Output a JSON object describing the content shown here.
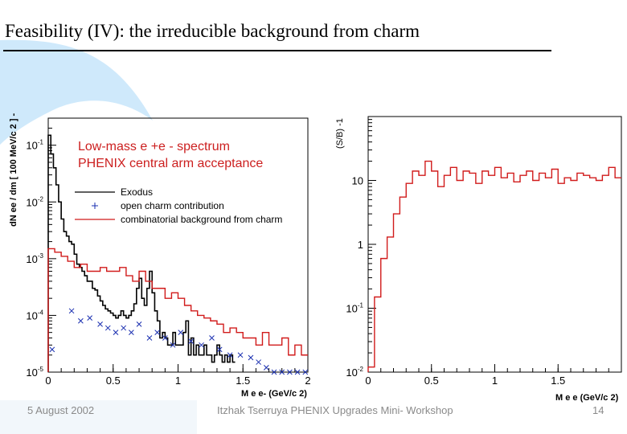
{
  "slide": {
    "title": "Feasibility (IV): the irreducible background from charm",
    "footer_left": "5 August 2002",
    "footer_center": "Itzhak Tserruya PHENIX Upgrades Mini- Workshop",
    "footer_right": "14"
  },
  "colors": {
    "accent_blue": "#cfe9fb",
    "red": "#d11b1b",
    "annot_red": "#cc1f1f",
    "black": "#000000",
    "blue": "#1a2fb0"
  },
  "chart_data": [
    {
      "type": "line",
      "title": "Low-mass e +e - spectrum",
      "subtitle": "PHENIX central arm acceptance",
      "xlabel": "M e e- (GeV/c 2)",
      "ylabel": "dN ee / dm [ 100 MeV/c 2 ] -1",
      "yscale": "log",
      "xlim": [
        0,
        2
      ],
      "ylim": [
        1e-05,
        0.3
      ],
      "x_ticks": [
        0,
        0.5,
        1,
        1.5,
        2
      ],
      "x_tick_labels": [
        "0",
        "0.5",
        "1",
        "1.5",
        "2"
      ],
      "y_ticks": [
        0.1,
        0.01,
        0.001,
        0.0001,
        1e-05
      ],
      "y_tick_labels": [
        "10-1",
        "10-2",
        "10-3",
        "10-4",
        "10-5"
      ],
      "y_tick_label_parts": [
        [
          "10",
          "-1"
        ],
        [
          "10",
          "-2"
        ],
        [
          "10",
          "-3"
        ],
        [
          "10",
          "-4"
        ],
        [
          "10",
          "-5"
        ]
      ],
      "legend_position": "top-right",
      "series": [
        {
          "name": "Exodus",
          "style": "black-step",
          "x": [
            0,
            0.02,
            0.04,
            0.06,
            0.08,
            0.1,
            0.12,
            0.14,
            0.16,
            0.18,
            0.2,
            0.22,
            0.24,
            0.26,
            0.28,
            0.3,
            0.32,
            0.34,
            0.36,
            0.38,
            0.4,
            0.42,
            0.44,
            0.46,
            0.48,
            0.5,
            0.52,
            0.54,
            0.56,
            0.58,
            0.6,
            0.62,
            0.64,
            0.66,
            0.68,
            0.7,
            0.72,
            0.74,
            0.76,
            0.78,
            0.8,
            0.82,
            0.84,
            0.86,
            0.88,
            0.9,
            0.92,
            0.94,
            0.96,
            0.98,
            1.0,
            1.02,
            1.04,
            1.06,
            1.08,
            1.1,
            1.12,
            1.14,
            1.16,
            1.18,
            1.2,
            1.22,
            1.24,
            1.26,
            1.28,
            1.3,
            1.32,
            1.34,
            1.36,
            1.38,
            1.4,
            1.42
          ],
          "y": [
            0.15,
            0.07,
            0.04,
            0.02,
            0.01,
            0.005,
            0.003,
            0.0025,
            0.002,
            0.0018,
            0.0012,
            0.0008,
            0.0007,
            0.0006,
            0.0005,
            0.0004,
            0.0004,
            0.0003,
            0.00028,
            0.00022,
            0.00018,
            0.00015,
            0.00013,
            0.00012,
            0.00011,
            0.0001,
            9e-05,
            0.0001,
            0.00012,
            0.0001,
            9e-05,
            0.0001,
            0.00012,
            0.00016,
            0.0003,
            0.00045,
            0.0002,
            0.00015,
            0.0003,
            0.0006,
            0.00025,
            0.00012,
            8e-05,
            4e-05,
            5e-05,
            4e-05,
            3e-05,
            3e-05,
            5e-05,
            3e-05,
            3e-05,
            3e-05,
            5e-05,
            8e-05,
            2e-05,
            4e-05,
            2e-05,
            3e-05,
            2e-05,
            2e-05,
            3e-05,
            2e-05,
            2e-05,
            1.5e-05,
            2e-05,
            3e-05,
            2e-05,
            1.5e-05,
            2e-05,
            1.5e-05,
            2e-05,
            1.5e-05
          ]
        },
        {
          "name": "open charm contribution",
          "style": "blue-markers",
          "x": [
            0.03,
            0.18,
            0.25,
            0.32,
            0.4,
            0.46,
            0.52,
            0.58,
            0.64,
            0.7,
            0.78,
            0.84,
            0.9,
            0.96,
            1.02,
            1.1,
            1.18,
            1.26,
            1.32,
            1.4,
            1.48,
            1.56,
            1.62,
            1.68,
            1.74,
            1.8,
            1.86,
            1.92,
            1.98
          ],
          "y": [
            2.5e-05,
            0.00012,
            8e-05,
            9e-05,
            7e-05,
            6e-05,
            5e-05,
            6e-05,
            5e-05,
            7e-05,
            4e-05,
            5e-05,
            4e-05,
            3e-05,
            5e-05,
            3.5e-05,
            3e-05,
            4e-05,
            2.5e-05,
            2e-05,
            2e-05,
            1.8e-05,
            1.5e-05,
            1.2e-05,
            1e-05,
            1e-05,
            1e-05,
            1e-05,
            1e-05
          ]
        },
        {
          "name": "combinatorial background from charm",
          "style": "red-step",
          "x": [
            0,
            0.05,
            0.1,
            0.15,
            0.2,
            0.25,
            0.3,
            0.35,
            0.4,
            0.45,
            0.5,
            0.55,
            0.6,
            0.65,
            0.7,
            0.75,
            0.8,
            0.85,
            0.9,
            0.95,
            1.0,
            1.05,
            1.1,
            1.15,
            1.2,
            1.25,
            1.3,
            1.35,
            1.4,
            1.45,
            1.5,
            1.55,
            1.6,
            1.65,
            1.7,
            1.75,
            1.8,
            1.85,
            1.9,
            1.95
          ],
          "y": [
            0.0015,
            0.0013,
            0.0011,
            0.0009,
            0.0007,
            0.0008,
            0.0006,
            0.0006,
            0.0007,
            0.0006,
            0.0006,
            0.0007,
            0.0005,
            0.0004,
            0.0006,
            0.0004,
            0.0003,
            0.0003,
            0.0002,
            0.00025,
            0.0002,
            0.00015,
            0.00012,
            0.0001,
            9e-05,
            8e-05,
            7e-05,
            5e-05,
            6e-05,
            5e-05,
            4e-05,
            4e-05,
            3e-05,
            5e-05,
            3e-05,
            3e-05,
            4e-05,
            2e-05,
            3e-05,
            2e-05
          ]
        }
      ]
    },
    {
      "type": "line",
      "xlabel": "M e e (GeV/c 2)",
      "ylabel": "(S/B) -1",
      "yscale": "log",
      "xlim": [
        0,
        2
      ],
      "ylim": [
        0.01,
        100
      ],
      "x_ticks": [
        0,
        0.5,
        1,
        1.5
      ],
      "x_tick_labels": [
        "0",
        "0.5",
        "1",
        "1.5"
      ],
      "y_ticks": [
        10,
        1,
        0.1,
        0.01
      ],
      "y_tick_labels": [
        "10",
        "1",
        "10-1",
        "10-2"
      ],
      "y_tick_label_parts": [
        [
          "10",
          ""
        ],
        [
          "1",
          ""
        ],
        [
          "10",
          "-1"
        ],
        [
          "10",
          "-2"
        ]
      ],
      "series": [
        {
          "style": "red-step",
          "x": [
            0,
            0.05,
            0.1,
            0.15,
            0.2,
            0.25,
            0.3,
            0.35,
            0.4,
            0.45,
            0.5,
            0.55,
            0.6,
            0.65,
            0.7,
            0.75,
            0.8,
            0.85,
            0.9,
            0.95,
            1.0,
            1.05,
            1.1,
            1.15,
            1.2,
            1.25,
            1.3,
            1.35,
            1.4,
            1.45,
            1.5,
            1.55,
            1.6,
            1.65,
            1.7,
            1.75,
            1.8,
            1.85,
            1.9,
            1.95
          ],
          "y": [
            0.012,
            0.15,
            0.6,
            1.3,
            3.0,
            5.5,
            9.0,
            14.0,
            12.0,
            20.0,
            14.0,
            8.0,
            12.0,
            16.0,
            10.0,
            14.0,
            13.0,
            9.0,
            14.0,
            12.0,
            16.0,
            11.0,
            13.0,
            9.5,
            12.0,
            14.0,
            10.0,
            13.0,
            11.0,
            15.0,
            9.0,
            11.0,
            10.0,
            13.0,
            12.0,
            11.0,
            10.0,
            12.0,
            16.0,
            11.0
          ]
        }
      ]
    }
  ]
}
